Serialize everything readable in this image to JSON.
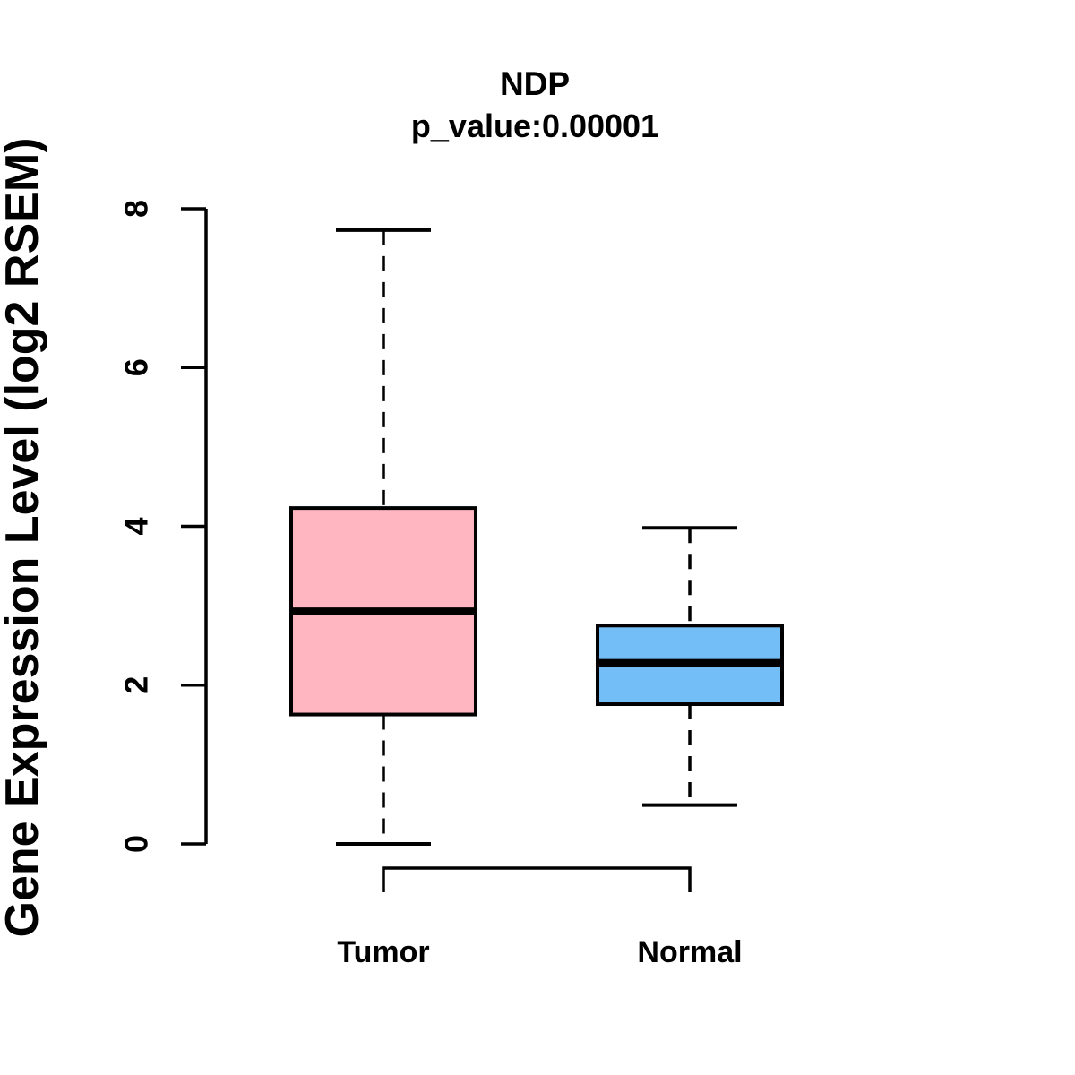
{
  "chart_data": {
    "type": "boxplot",
    "title": "NDP",
    "subtitle": "p_value:0.00001",
    "ylabel": "Gene Expression Level (log2 RSEM)",
    "xlabel": "",
    "ylim": [
      0,
      8
    ],
    "yticks": [
      0,
      2,
      4,
      6,
      8
    ],
    "grid": false,
    "legend": "none",
    "groups": [
      {
        "label": "Tumor",
        "fill_color": "#FFB6C1",
        "whisker_low": 0.0,
        "q1": 1.63,
        "median": 2.93,
        "q3": 4.23,
        "whisker_high": 7.73
      },
      {
        "label": "Normal",
        "fill_color": "#74BEF8",
        "whisker_low": 0.49,
        "q1": 1.76,
        "median": 2.28,
        "q3": 2.75,
        "whisker_high": 3.98
      }
    ],
    "line_color": "#000000",
    "background_color": "#FFFFFF"
  }
}
